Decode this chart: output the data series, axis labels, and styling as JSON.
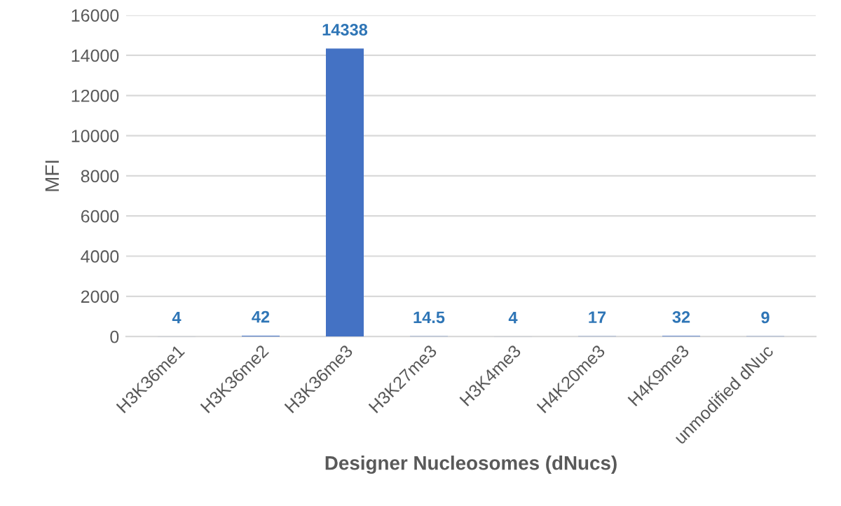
{
  "chart_data": {
    "type": "bar",
    "xlabel": "Designer Nucleosomes (dNucs)",
    "ylabel": "MFI",
    "categories": [
      "H3K36me1",
      "H3K36me2",
      "H3K36me3",
      "H3K27me3",
      "H3K4me3",
      "H4K20me3",
      "H4K9me3",
      "unmodified dNuc"
    ],
    "values": [
      4,
      42,
      14338,
      14.5,
      4,
      17,
      32,
      9
    ],
    "color": "#4472c4",
    "ylim": [
      0,
      16000
    ],
    "yticks": [
      0,
      2000,
      4000,
      6000,
      8000,
      10000,
      12000,
      14000,
      16000
    ],
    "grid": "y",
    "data_labels": true
  }
}
